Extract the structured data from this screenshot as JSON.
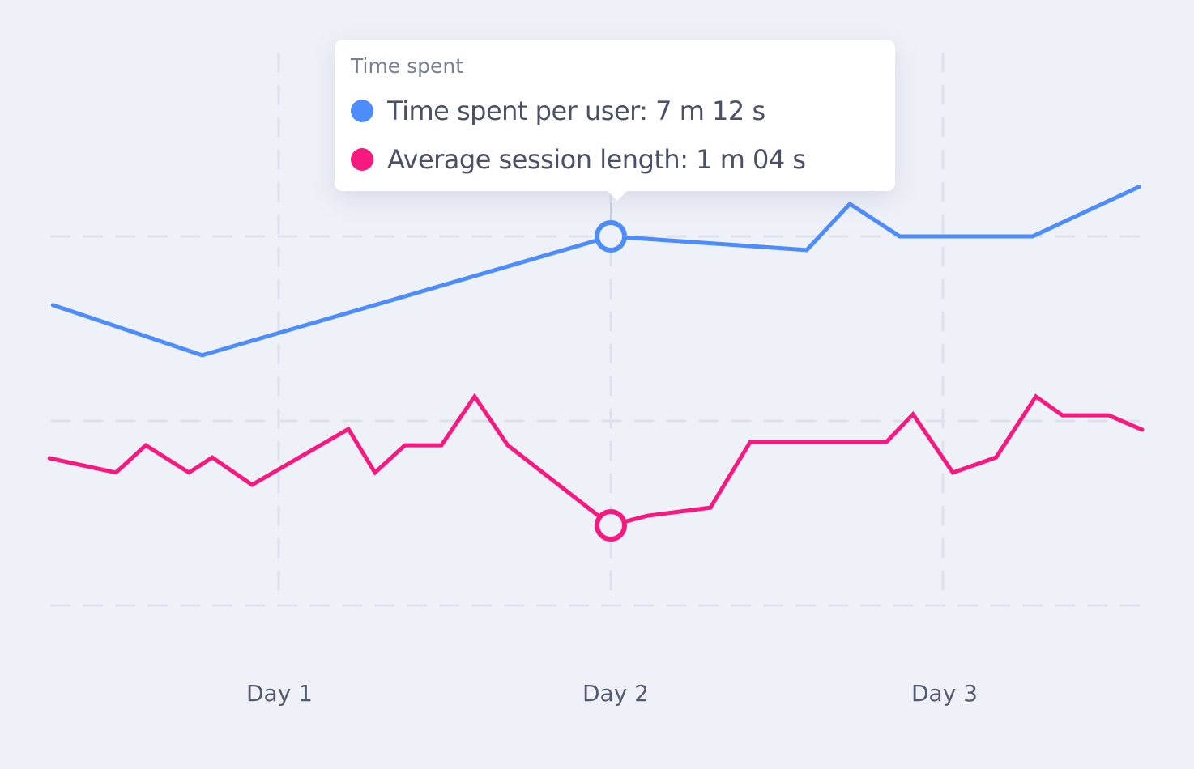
{
  "chart_data": {
    "type": "line",
    "title": "",
    "xlabel": "",
    "ylabel": "",
    "x_ticks": [
      {
        "value": 1,
        "label": "Day 1"
      },
      {
        "value": 2,
        "label": "Day 2"
      },
      {
        "value": 3,
        "label": "Day 3"
      }
    ],
    "y_gridlines": [
      0,
      50,
      100
    ],
    "xlim": [
      0.32,
      3.6
    ],
    "ylim": [
      0,
      120
    ],
    "grid": true,
    "series": [
      {
        "name": "Time spent per user",
        "color": "#4d8cfb",
        "points": [
          [
            0.32,
            81.4
          ],
          [
            0.77,
            67.8
          ],
          [
            2.0,
            100
          ],
          [
            2.59,
            96.3
          ],
          [
            2.72,
            108.8
          ],
          [
            2.87,
            100
          ],
          [
            3.27,
            100
          ],
          [
            3.59,
            113.4
          ]
        ]
      },
      {
        "name": "Average session length",
        "color": "#f7197f",
        "points": [
          [
            0.31,
            39.9
          ],
          [
            0.51,
            36.0
          ],
          [
            0.6,
            43.4
          ],
          [
            0.73,
            36.0
          ],
          [
            0.8,
            40.1
          ],
          [
            0.92,
            32.7
          ],
          [
            1.21,
            47.8
          ],
          [
            1.29,
            36.0
          ],
          [
            1.38,
            43.4
          ],
          [
            1.49,
            43.4
          ],
          [
            1.59,
            56.6
          ],
          [
            1.69,
            43.4
          ],
          [
            2.0,
            21.7
          ],
          [
            2.11,
            24.3
          ],
          [
            2.3,
            26.5
          ],
          [
            2.42,
            44.3
          ],
          [
            2.83,
            44.3
          ],
          [
            2.91,
            51.8
          ],
          [
            3.03,
            36.0
          ],
          [
            3.16,
            40.1
          ],
          [
            3.28,
            56.6
          ],
          [
            3.36,
            51.5
          ],
          [
            3.5,
            51.5
          ],
          [
            3.6,
            47.6
          ]
        ]
      }
    ],
    "highlight_x": 2.0,
    "tooltip": {
      "title": "Time spent",
      "rows": [
        {
          "label": "Time spent per user: 7 m 12 s",
          "color": "#4d8cfb"
        },
        {
          "label": "Average session length: 1 m 04 s",
          "color": "#f7197f"
        }
      ]
    }
  }
}
